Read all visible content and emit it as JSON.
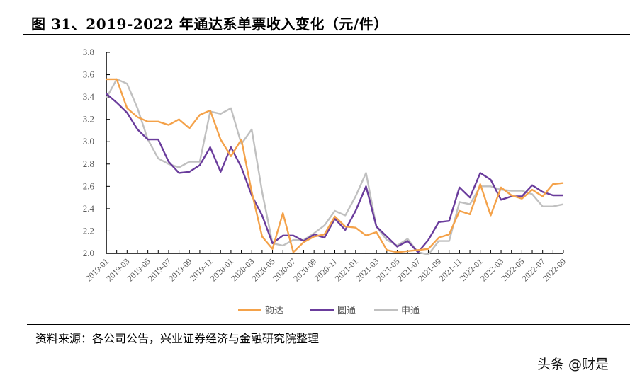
{
  "header": {
    "title": "图 31、2019-2022 年通达系单票收入变化（元/件）"
  },
  "footer": {
    "source": "资料来源：各公司公告，兴业证券经济与金融研究院整理",
    "watermark": "头条 @财是"
  },
  "colors": {
    "yunda": "#F4A24A",
    "yuantong": "#6A3C9C",
    "shentong": "#C0C0C0",
    "axis": "#000000",
    "tick_label": "#595959"
  },
  "chart_data": {
    "type": "line",
    "title": "2019-2022 年通达系单票收入变化（元/件）",
    "xlabel": "",
    "ylabel": "元/件",
    "ylim": [
      2.0,
      3.8
    ],
    "yticks": [
      2.0,
      2.2,
      2.4,
      2.6,
      2.8,
      3.0,
      3.2,
      3.4,
      3.6,
      3.8
    ],
    "grid": false,
    "legend_position": "bottom",
    "x": [
      "2019-01",
      "2019-02",
      "2019-03",
      "2019-04",
      "2019-05",
      "2019-06",
      "2019-07",
      "2019-08",
      "2019-09",
      "2019-10",
      "2019-11",
      "2019-12",
      "2020-01",
      "2020-02",
      "2020-03",
      "2020-04",
      "2020-05",
      "2020-06",
      "2020-07",
      "2020-08",
      "2020-09",
      "2020-10",
      "2020-11",
      "2020-12",
      "2021-01",
      "2021-02",
      "2021-03",
      "2021-04",
      "2021-05",
      "2021-06",
      "2021-07",
      "2021-08",
      "2021-09",
      "2021-10",
      "2021-11",
      "2021-12",
      "2022-01",
      "2022-02",
      "2022-03",
      "2022-04",
      "2022-05",
      "2022-06",
      "2022-07",
      "2022-08",
      "2022-09"
    ],
    "xtick_labels": [
      "2019-01",
      "2019-03",
      "2019-05",
      "2019-07",
      "2019-09",
      "2019-11",
      "2020-01",
      "2020-03",
      "2020-05",
      "2020-07",
      "2020-09",
      "2020-11",
      "2021-01",
      "2021-03",
      "2021-05",
      "2021-07",
      "2021-09",
      "2021-11",
      "2022-01",
      "2022-03",
      "2022-05",
      "2022-07",
      "2022-09"
    ],
    "series": [
      {
        "name": "韵达",
        "color": "#F4A24A",
        "values": [
          3.56,
          3.56,
          3.3,
          3.22,
          3.18,
          3.18,
          3.15,
          3.2,
          3.12,
          3.24,
          3.28,
          3.02,
          2.87,
          3.02,
          2.55,
          2.15,
          2.04,
          2.36,
          2.01,
          2.1,
          2.15,
          2.17,
          2.33,
          2.24,
          2.23,
          2.16,
          2.19,
          2.03,
          2.01,
          2.02,
          2.03,
          2.04,
          2.14,
          2.17,
          2.38,
          2.35,
          2.62,
          2.34,
          2.59,
          2.52,
          2.49,
          2.57,
          2.51,
          2.62,
          2.63
        ]
      },
      {
        "name": "圆通",
        "color": "#6A3C9C",
        "values": [
          3.43,
          3.35,
          3.26,
          3.11,
          3.02,
          3.02,
          2.82,
          2.72,
          2.73,
          2.79,
          2.95,
          2.73,
          2.95,
          2.77,
          2.52,
          2.34,
          2.09,
          2.16,
          2.16,
          2.11,
          2.17,
          2.14,
          2.31,
          2.21,
          2.38,
          2.6,
          2.24,
          2.15,
          2.06,
          2.11,
          2.01,
          2.12,
          2.28,
          2.29,
          2.59,
          2.5,
          2.72,
          2.66,
          2.48,
          2.51,
          2.51,
          2.61,
          2.55,
          2.52,
          2.52
        ]
      },
      {
        "name": "申通",
        "color": "#C0C0C0",
        "values": [
          3.39,
          3.56,
          3.52,
          3.3,
          3.02,
          2.85,
          2.8,
          2.77,
          2.82,
          2.82,
          3.27,
          3.25,
          3.3,
          2.98,
          3.11,
          2.55,
          2.09,
          2.07,
          2.12,
          2.12,
          2.18,
          2.25,
          2.38,
          2.34,
          2.51,
          2.72,
          2.24,
          2.12,
          2.07,
          2.13,
          2.01,
          1.99,
          2.11,
          2.11,
          2.46,
          2.44,
          2.6,
          2.6,
          2.57,
          2.56,
          2.56,
          2.53,
          2.42,
          2.42,
          2.44
        ]
      }
    ]
  }
}
